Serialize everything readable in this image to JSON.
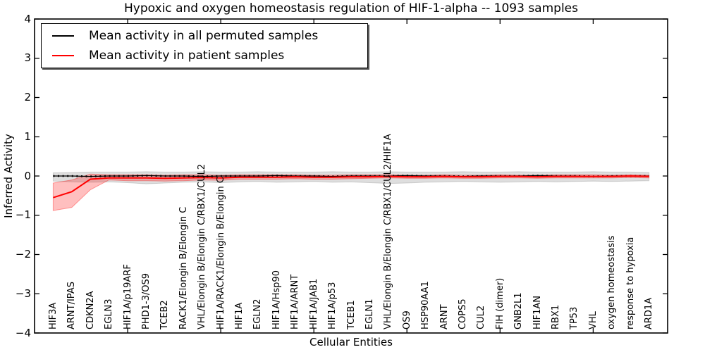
{
  "title": "Hypoxic and oxygen homeostasis regulation of HIF-1-alpha -- 1093 samples",
  "axes": {
    "xlabel": "Cellular Entities",
    "ylabel": "Inferred Activity",
    "ylim": [
      -4,
      4
    ],
    "xlim": [
      0,
      34
    ],
    "yticks": [
      4,
      3,
      2,
      1,
      0,
      -1,
      -2,
      -3,
      -4
    ],
    "xticks_numeric": [
      5,
      10,
      15,
      20,
      25,
      30
    ],
    "grid": false,
    "background": "#ffffff"
  },
  "legend": {
    "position": "upper left",
    "items": [
      {
        "label": "Mean activity in all permuted samples",
        "color": "#000000"
      },
      {
        "label": "Mean activity in patient samples",
        "color": "#ff0000"
      }
    ]
  },
  "chart_data": {
    "type": "line",
    "title": "Hypoxic and oxygen homeostasis regulation of HIF-1-alpha -- 1093 samples",
    "xlabel": "Cellular Entities",
    "ylabel": "Inferred Activity",
    "ylim": [
      -4,
      4
    ],
    "categories": [
      "HIF3A",
      "ARNT/IPAS",
      "CDKN2A",
      "EGLN3",
      "HIF1A/p19ARF",
      "PHD1-3/OS9",
      "TCEB2",
      "RACK1/Elongin B/Elongin C",
      "VHL/Elongin B/Elongin C/RBX1/CUL2",
      "HIF1A/RACK1/Elongin B/Elongin C",
      "HIF1A",
      "EGLN2",
      "HIF1A/Hsp90",
      "HIF1A/ARNT",
      "HIF1A/JAB1",
      "HIF1A/p53",
      "TCEB1",
      "EGLN1",
      "VHL/Elongin B/Elongin C/RBX1/CUL2/HIF1A",
      "OS9",
      "HSP90AA1",
      "ARNT",
      "COPS5",
      "CUL2",
      "FIH (dimer)",
      "GNB2L1",
      "HIF1AN",
      "RBX1",
      "TP53",
      "VHL",
      "oxygen homeostasis",
      "response to hypoxia",
      "ARD1A"
    ],
    "series": [
      {
        "name": "Mean activity in all permuted samples",
        "color": "#000000",
        "line_style": "solid_with_dot_markers",
        "values": [
          0.0,
          0.0,
          -0.01,
          0.0,
          0.0,
          0.01,
          0.0,
          0.0,
          -0.01,
          0.0,
          0.0,
          0.0,
          0.01,
          0.0,
          0.0,
          -0.01,
          0.0,
          0.0,
          0.0,
          0.01,
          0.0,
          0.0,
          -0.01,
          0.0,
          0.0,
          0.0,
          0.01,
          0.0,
          0.0,
          -0.01,
          0.0,
          0.0,
          0.0
        ],
        "band_upper": [
          0.08,
          0.09,
          0.1,
          0.1,
          0.1,
          0.11,
          0.1,
          0.1,
          0.11,
          0.1,
          0.1,
          0.11,
          0.1,
          0.1,
          0.1,
          0.11,
          0.1,
          0.1,
          0.11,
          0.1,
          0.1,
          0.1,
          0.11,
          0.1,
          0.1,
          0.11,
          0.1,
          0.1,
          0.1,
          0.11,
          0.1,
          0.1,
          0.09
        ],
        "band_lower": [
          -0.13,
          -0.15,
          -0.16,
          -0.15,
          -0.17,
          -0.2,
          -0.18,
          -0.16,
          -0.15,
          -0.17,
          -0.15,
          -0.14,
          -0.16,
          -0.15,
          -0.14,
          -0.16,
          -0.15,
          -0.17,
          -0.19,
          -0.18,
          -0.16,
          -0.15,
          -0.14,
          -0.15,
          -0.16,
          -0.15,
          -0.14,
          -0.15,
          -0.14,
          -0.13,
          -0.14,
          -0.13,
          -0.12
        ],
        "band_fill": "rgba(0,0,0,0.13)",
        "band_edge": "rgba(0,0,0,0.15)"
      },
      {
        "name": "Mean activity in patient samples",
        "color": "#ff0000",
        "line_style": "solid",
        "values": [
          -0.55,
          -0.4,
          -0.08,
          -0.05,
          -0.05,
          -0.05,
          -0.06,
          -0.05,
          -0.04,
          -0.05,
          -0.03,
          -0.03,
          -0.03,
          -0.02,
          -0.03,
          -0.03,
          -0.02,
          -0.02,
          -0.01,
          -0.02,
          -0.02,
          -0.01,
          -0.02,
          -0.02,
          -0.01,
          -0.01,
          -0.02,
          -0.01,
          -0.01,
          -0.01,
          -0.01,
          0.0,
          -0.01
        ],
        "band_upper": [
          -0.18,
          -0.1,
          0.05,
          0.03,
          0.03,
          0.03,
          0.02,
          0.03,
          0.03,
          0.02,
          0.03,
          0.03,
          0.03,
          0.03,
          0.02,
          0.02,
          0.03,
          0.03,
          0.03,
          0.02,
          0.02,
          0.03,
          0.02,
          0.02,
          0.03,
          0.02,
          0.02,
          0.03,
          0.03,
          0.03,
          0.02,
          0.03,
          0.02
        ],
        "band_lower": [
          -0.88,
          -0.8,
          -0.35,
          -0.1,
          -0.12,
          -0.12,
          -0.13,
          -0.12,
          -0.1,
          -0.11,
          -0.08,
          -0.08,
          -0.08,
          -0.07,
          -0.08,
          -0.08,
          -0.07,
          -0.06,
          -0.05,
          -0.06,
          -0.06,
          -0.05,
          -0.06,
          -0.06,
          -0.05,
          -0.05,
          -0.06,
          -0.05,
          -0.05,
          -0.05,
          -0.05,
          -0.04,
          -0.05
        ],
        "band_fill": "rgba(255,0,0,0.25)",
        "band_edge": "rgba(255,0,0,0.35)"
      }
    ]
  }
}
